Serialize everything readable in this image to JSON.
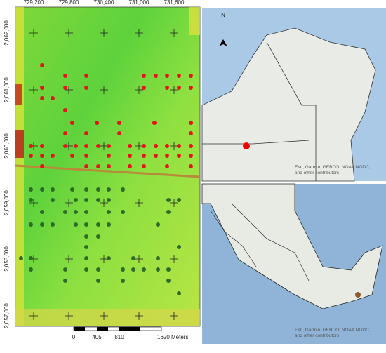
{
  "study_map": {
    "x_labels": [
      "729,200",
      "729,800",
      "730,400",
      "731,000",
      "731,600"
    ],
    "y_labels": [
      "2,062,000",
      "2,061,000",
      "2,060,000",
      "2,059,000",
      "2,058,000",
      "2,057,000"
    ],
    "scale_bar": [
      "0",
      "405",
      "810",
      "1620 Meters"
    ]
  },
  "inset_top": {
    "north": "N",
    "attribution": [
      "Esri, Garmin, GEBCO, NOAA NGDC,",
      "and other contributors"
    ]
  },
  "inset_bottom": {
    "attribution": [
      "Esri, Garmin, GEBCO, NOAA NGDC,",
      "and other contributors"
    ]
  }
}
